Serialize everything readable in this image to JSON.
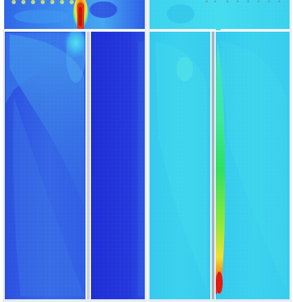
{
  "image": {
    "kind": "contour-field-pair",
    "panels": [
      {
        "name": "left-panel",
        "background": "#2a49e8",
        "accent": "#e03018"
      },
      {
        "name": "right-panel",
        "background": "#3cd6ee",
        "accent": "#ff1800"
      }
    ]
  }
}
